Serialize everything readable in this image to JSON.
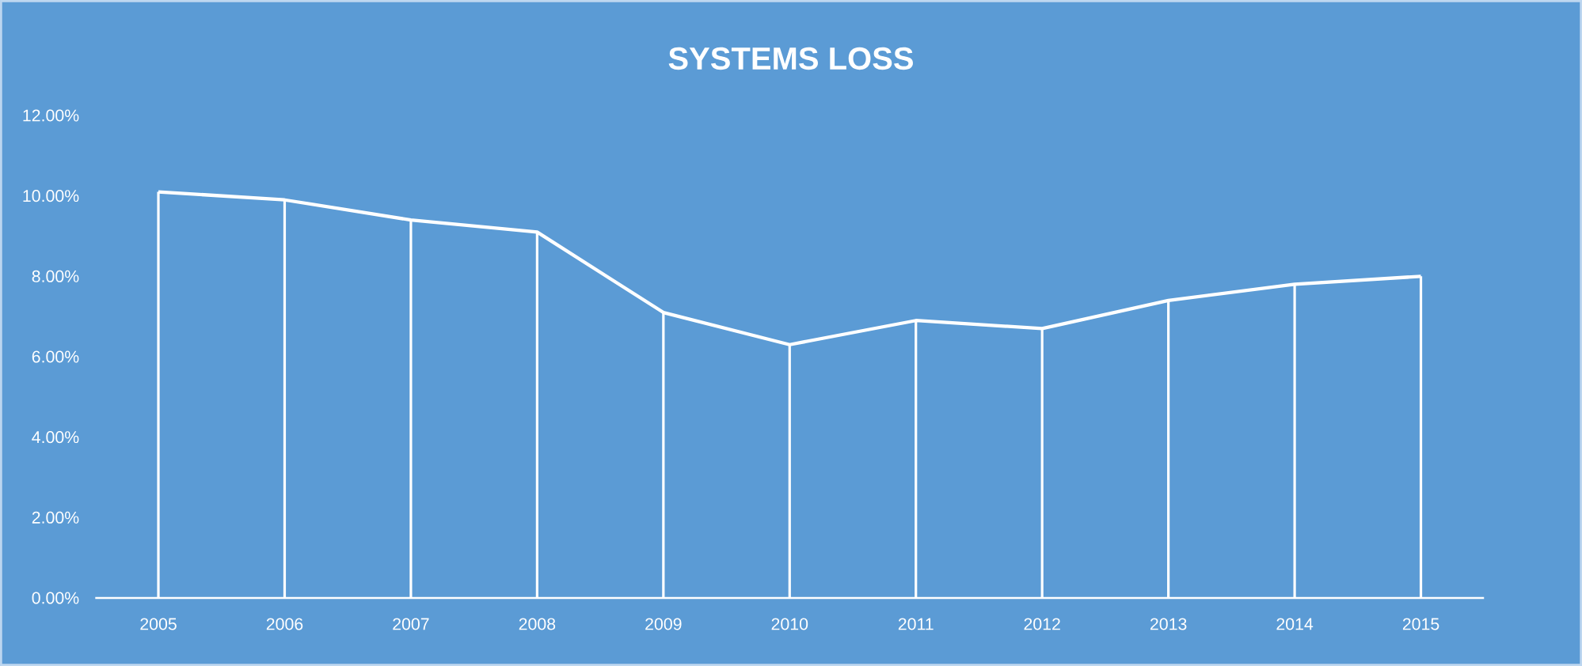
{
  "chart_data": {
    "type": "line",
    "title": "SYSTEMS LOSS",
    "categories": [
      "2005",
      "2006",
      "2007",
      "2008",
      "2009",
      "2010",
      "2011",
      "2012",
      "2013",
      "2014",
      "2015"
    ],
    "series": [
      {
        "color": "#ffffff",
        "values": [
          10.1,
          9.9,
          9.4,
          9.1,
          7.1,
          6.3,
          6.9,
          6.7,
          7.4,
          7.8,
          8.0
        ]
      },
      {
        "type": "bar",
        "color": "#ffffff",
        "values": [
          10.1,
          9.9,
          9.4,
          9.1,
          7.1,
          6.3,
          6.9,
          6.7,
          7.4,
          7.8,
          8.0
        ]
      }
    ],
    "ylim": [
      0,
      12
    ],
    "yticks": [
      {
        "value": 0,
        "label": "0.00%"
      },
      {
        "value": 2,
        "label": "2.00%"
      },
      {
        "value": 4,
        "label": "4.00%"
      },
      {
        "value": 6,
        "label": "6.00%"
      },
      {
        "value": 8,
        "label": "8.00%"
      },
      {
        "value": 10,
        "label": "10.00%"
      },
      {
        "value": 12,
        "label": "12.00%"
      }
    ],
    "marker": "none",
    "line_style": "solid"
  }
}
